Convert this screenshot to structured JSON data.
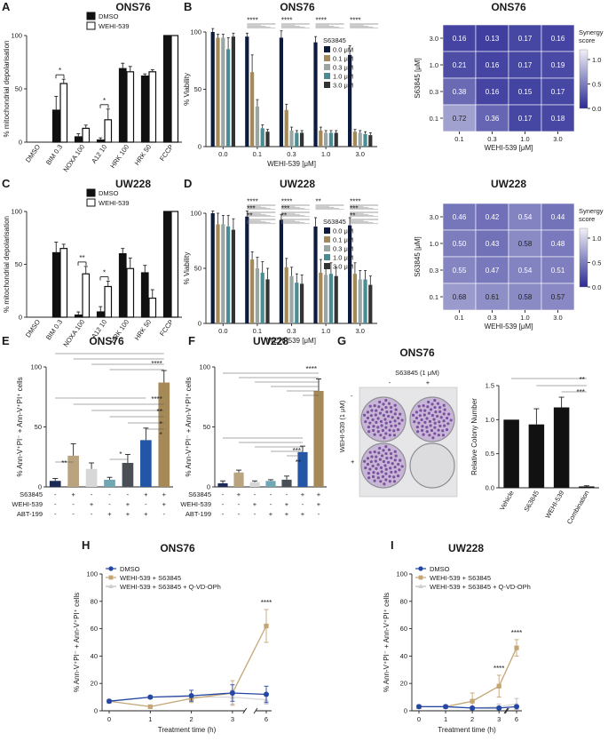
{
  "panels": {
    "A": {
      "letter": "A",
      "title": "ONS76"
    },
    "B": {
      "letter": "B",
      "title": "ONS76"
    },
    "C": {
      "letter": "C",
      "title": "UW228"
    },
    "D": {
      "letter": "D",
      "title": "UW228"
    },
    "E": {
      "letter": "E",
      "title": "ONS76"
    },
    "F": {
      "letter": "F",
      "title": "UW228"
    },
    "G": {
      "letter": "G",
      "title": "ONS76"
    },
    "H": {
      "letter": "H",
      "title": "ONS76"
    },
    "I": {
      "letter": "I",
      "title": "UW228"
    }
  },
  "chart_data": [
    {
      "id": "A",
      "type": "bar",
      "title": "ONS76",
      "ylabel": "% mitochondrial depolarisation",
      "ylim": [
        0,
        100
      ],
      "yticks": [
        0,
        50,
        100
      ],
      "categories": [
        "DMSO",
        "BIM 0.3",
        "NOXA 100",
        "A12 10",
        "HRK 100",
        "HRK 50",
        "FCCP"
      ],
      "series": [
        {
          "name": "DMSO",
          "values": [
            0,
            30,
            5,
            2,
            69,
            62,
            100
          ],
          "err": [
            0,
            13,
            3,
            2,
            5,
            2,
            0
          ]
        },
        {
          "name": "WEHI-539",
          "values": [
            0,
            55,
            13,
            21,
            66,
            66,
            100
          ],
          "err": [
            0,
            4,
            3,
            10,
            5,
            2,
            0
          ]
        }
      ],
      "colors": [
        "#111111",
        "#ffffff"
      ],
      "significance": [
        {
          "pair": [
            1,
            1
          ],
          "label": "*"
        },
        {
          "pair": [
            3,
            3
          ],
          "label": "*"
        }
      ]
    },
    {
      "id": "B",
      "type": "bar",
      "title": "ONS76",
      "xlabel": "WEHI-539 [μM]",
      "ylabel": "% Viability",
      "ylim": [
        0,
        100
      ],
      "yticks": [
        0,
        50,
        100
      ],
      "legend_title": "S63845",
      "categories": [
        "0.0",
        "0.1",
        "0.3",
        "1.0",
        "3.0"
      ],
      "series": [
        {
          "name": "0.0 μM",
          "values": [
            100,
            96,
            95,
            91,
            80
          ],
          "err": [
            3,
            3,
            6,
            5,
            8
          ]
        },
        {
          "name": "0.1 μM",
          "values": [
            95,
            65,
            32,
            14,
            13
          ],
          "err": [
            3,
            15,
            5,
            3,
            2
          ]
        },
        {
          "name": "0.3 μM",
          "values": [
            95,
            35,
            14,
            12,
            12
          ],
          "err": [
            3,
            6,
            3,
            2,
            2
          ]
        },
        {
          "name": "1.0 μM",
          "values": [
            85,
            16,
            12,
            12,
            11
          ],
          "err": [
            10,
            3,
            2,
            2,
            2
          ]
        },
        {
          "name": "3.0 μM",
          "values": [
            96,
            13,
            12,
            12,
            10
          ],
          "err": [
            3,
            2,
            2,
            2,
            2
          ]
        }
      ],
      "colors": [
        "#0d1b3e",
        "#a58a57",
        "#9aa5a4",
        "#4a8c94",
        "#333333"
      ],
      "significance": [
        "****",
        "****",
        "****",
        "****"
      ]
    },
    {
      "id": "B-heatmap",
      "type": "heatmap",
      "title": "ONS76",
      "xlabel": "WEHI-539 [μM]",
      "ylabel": "S63845 [μM]",
      "x": [
        "0.1",
        "0.3",
        "1.0",
        "3.0"
      ],
      "y": [
        "3.0",
        "1.0",
        "0.3",
        "0.1"
      ],
      "values": [
        [
          0.16,
          0.13,
          0.17,
          0.16
        ],
        [
          0.21,
          0.16,
          0.17,
          0.19
        ],
        [
          0.38,
          0.16,
          0.15,
          0.17
        ],
        [
          0.72,
          0.36,
          0.17,
          0.18
        ]
      ],
      "colorbar": {
        "label": "Synergy score",
        "range": [
          0,
          1.2
        ],
        "ticks": [
          "1.0",
          "0.5",
          "0.0"
        ],
        "low_color": "#2a2a95",
        "high_color": "#f1f0f8"
      }
    },
    {
      "id": "C",
      "type": "bar",
      "title": "UW228",
      "ylabel": "% mitochondrial depolarisation",
      "ylim": [
        0,
        100
      ],
      "yticks": [
        0,
        50,
        100
      ],
      "categories": [
        "DMSO",
        "BIM 0.3",
        "NOXA 100",
        "A12 10",
        "HRK 100",
        "HRK 50",
        "FCCP"
      ],
      "series": [
        {
          "name": "DMSO",
          "values": [
            0,
            61,
            2,
            5,
            60,
            42,
            100
          ],
          "err": [
            0,
            10,
            3,
            5,
            5,
            7,
            0
          ]
        },
        {
          "name": "WEHI-539",
          "values": [
            0,
            65,
            41,
            29,
            46,
            18,
            100
          ],
          "err": [
            0,
            4,
            7,
            5,
            10,
            8,
            0
          ]
        }
      ],
      "colors": [
        "#111111",
        "#ffffff"
      ],
      "significance": [
        {
          "pair": [
            2,
            2
          ],
          "label": "**"
        },
        {
          "pair": [
            3,
            3
          ],
          "label": "*"
        }
      ]
    },
    {
      "id": "D",
      "type": "bar",
      "title": "UW228",
      "xlabel": "WEHI-539 [μM]",
      "ylabel": "% Viability",
      "ylim": [
        0,
        100
      ],
      "yticks": [
        0,
        50,
        100
      ],
      "legend_title": "S63845",
      "categories": [
        "0.0",
        "0.1",
        "0.3",
        "1.0",
        "3.0"
      ],
      "series": [
        {
          "name": "0.0 μM",
          "values": [
            100,
            97,
            94,
            88,
            89
          ],
          "err": [
            2,
            5,
            5,
            8,
            7
          ]
        },
        {
          "name": "0.1 μM",
          "values": [
            90,
            58,
            51,
            46,
            45
          ],
          "err": [
            10,
            7,
            8,
            12,
            10
          ]
        },
        {
          "name": "0.3 μM",
          "values": [
            90,
            50,
            43,
            44,
            40
          ],
          "err": [
            8,
            10,
            8,
            10,
            8
          ]
        },
        {
          "name": "1.0 μM",
          "values": [
            88,
            46,
            37,
            45,
            40
          ],
          "err": [
            10,
            10,
            8,
            10,
            8
          ]
        },
        {
          "name": "3.0 μM",
          "values": [
            85,
            40,
            36,
            43,
            35
          ],
          "err": [
            10,
            10,
            8,
            8,
            8
          ]
        }
      ],
      "colors": [
        "#0d1b3e",
        "#a58a57",
        "#9aa5a4",
        "#4a8c94",
        "#333333"
      ],
      "significance": [
        [
          "****",
          "***",
          "**"
        ],
        [
          "****",
          "***",
          "**"
        ],
        [
          "**"
        ],
        [
          "****",
          "***",
          "**"
        ]
      ]
    },
    {
      "id": "D-heatmap",
      "type": "heatmap",
      "title": "UW228",
      "xlabel": "WEHI-539 [μM]",
      "ylabel": "S63845 [μM]",
      "x": [
        "0.1",
        "0.3",
        "1.0",
        "3.0"
      ],
      "y": [
        "3.0",
        "1.0",
        "0.3",
        "0.1"
      ],
      "values": [
        [
          0.46,
          0.42,
          0.54,
          0.44
        ],
        [
          0.5,
          0.43,
          0.58,
          0.48
        ],
        [
          0.55,
          0.47,
          0.54,
          0.51
        ],
        [
          0.68,
          0.61,
          0.58,
          0.57
        ]
      ],
      "colorbar": {
        "label": "Synergy score",
        "range": [
          0,
          1.2
        ],
        "ticks": [
          "1.0",
          "0.5",
          "0.0"
        ],
        "low_color": "#2a2a95",
        "high_color": "#f1f0f8"
      }
    },
    {
      "id": "E",
      "type": "bar",
      "title": "ONS76",
      "ylabel": "% Ann-V⁺PI⁻ + Ann-V⁺PI⁺ cells",
      "ylim": [
        0,
        100
      ],
      "yticks": [
        0,
        50,
        100
      ],
      "treatment_rows": [
        "S63845",
        "WEHI-539",
        "ABT-199"
      ],
      "conditions": [
        [
          "-",
          "-",
          "-"
        ],
        [
          "+",
          "-",
          "-"
        ],
        [
          "-",
          "+",
          "-"
        ],
        [
          "-",
          "-",
          "+"
        ],
        [
          "-",
          "+",
          "+"
        ],
        [
          "+",
          "-",
          "+"
        ],
        [
          "+",
          "+",
          "-"
        ]
      ],
      "values": [
        5,
        26,
        15,
        6,
        20,
        39,
        87
      ],
      "err": [
        2,
        10,
        5,
        2,
        7,
        10,
        10
      ],
      "colors": [
        "#1b2b55",
        "#b9a47f",
        "#d7d7d7",
        "#6fa8b4",
        "#4a4f55",
        "#2356a6",
        "#a58a57"
      ],
      "significance": [
        "****",
        "****",
        "*",
        "**",
        "*",
        "*",
        "**"
      ]
    },
    {
      "id": "F",
      "type": "bar",
      "title": "UW228",
      "ylabel": "% Ann-V⁺PI⁻ + Ann-V⁺PI⁺ cells",
      "ylim": [
        0,
        100
      ],
      "yticks": [
        0,
        50,
        100
      ],
      "treatment_rows": [
        "S63845",
        "WEHI-539",
        "ABT-199"
      ],
      "conditions": [
        [
          "-",
          "-",
          "-"
        ],
        [
          "+",
          "-",
          "-"
        ],
        [
          "-",
          "+",
          "-"
        ],
        [
          "-",
          "-",
          "+"
        ],
        [
          "-",
          "+",
          "+"
        ],
        [
          "+",
          "-",
          "+"
        ],
        [
          "+",
          "+",
          "-"
        ]
      ],
      "values": [
        3,
        12,
        4,
        5,
        6,
        29,
        80
      ],
      "err": [
        2,
        2,
        1,
        1,
        3,
        5,
        10
      ],
      "colors": [
        "#1b2b55",
        "#b9a47f",
        "#d7d7d7",
        "#6fa8b4",
        "#4a4f55",
        "#2356a6",
        "#a58a57"
      ],
      "significance": [
        "****",
        "***",
        "**"
      ]
    },
    {
      "id": "G-bar",
      "type": "bar",
      "title": "ONS76",
      "ylabel": "Relative Colony Number",
      "ylim": [
        0,
        1.5
      ],
      "yticks": [
        "0.0",
        "0.5",
        "1.0",
        "1.5"
      ],
      "categories": [
        "Vehicle",
        "S63845",
        "WEHI-539",
        "Combination"
      ],
      "values": [
        1.0,
        0.93,
        1.18,
        0.02
      ],
      "err": [
        0,
        0.23,
        0.15,
        0.01
      ],
      "colors": [
        "#111111",
        "#111111",
        "#111111",
        "#111111"
      ],
      "significance": [
        "**",
        "***"
      ],
      "plate_labels": {
        "top": "S63845 (1 μM)",
        "side": "WEHI-539 (1 μM)",
        "minus": "-",
        "plus": "+"
      }
    },
    {
      "id": "H",
      "type": "line",
      "title": "ONS76",
      "xlabel": "Treatment time (h)",
      "ylabel": "% Ann-V⁺PI⁻ + Ann-V⁺PI⁺ cells",
      "x": [
        0,
        1,
        2,
        3,
        6
      ],
      "ylim": [
        0,
        100
      ],
      "yticks": [
        0,
        20,
        40,
        60,
        80,
        100
      ],
      "series": [
        {
          "name": "DMSO",
          "values": [
            7,
            10,
            11,
            13,
            12
          ],
          "err": [
            1,
            1,
            4,
            6,
            6
          ],
          "color": "#2447a6"
        },
        {
          "name": "WEHI-539 + S63845",
          "values": [
            7,
            3,
            9,
            13,
            62
          ],
          "err": [
            1,
            1,
            3,
            9,
            12
          ],
          "color": "#c4a574"
        },
        {
          "name": "WEHI-539 + S63845 + Q-VD-OPh",
          "values": [
            7,
            10,
            10,
            10,
            8
          ],
          "err": [
            1,
            1,
            2,
            5,
            3
          ],
          "color": "#d9d9d9"
        }
      ],
      "significance": [
        {
          "x": 6,
          "label": "****"
        }
      ]
    },
    {
      "id": "I",
      "type": "line",
      "title": "UW228",
      "xlabel": "Treatment time (h)",
      "ylabel": "% Ann-V⁺PI⁻ + Ann-V⁺PI⁺ cells",
      "x": [
        0,
        1,
        2,
        3,
        6
      ],
      "ylim": [
        0,
        100
      ],
      "yticks": [
        0,
        20,
        40,
        60,
        80,
        100
      ],
      "series": [
        {
          "name": "DMSO",
          "values": [
            3,
            3,
            2,
            2,
            3
          ],
          "err": [
            1,
            1,
            1,
            1,
            1
          ],
          "color": "#2447a6"
        },
        {
          "name": "WEHI-539 + S63845",
          "values": [
            3,
            3,
            7,
            18,
            46
          ],
          "err": [
            1,
            1,
            6,
            8,
            6
          ],
          "color": "#c4a574"
        },
        {
          "name": "WEHI-539 + S63845 + Q-VD-OPh",
          "values": [
            3,
            3,
            2,
            3,
            5
          ],
          "err": [
            1,
            1,
            1,
            2,
            4
          ],
          "color": "#d9d9d9"
        }
      ],
      "significance": [
        {
          "x": 3,
          "label": "****"
        },
        {
          "x": 6,
          "label": "****"
        }
      ]
    }
  ]
}
